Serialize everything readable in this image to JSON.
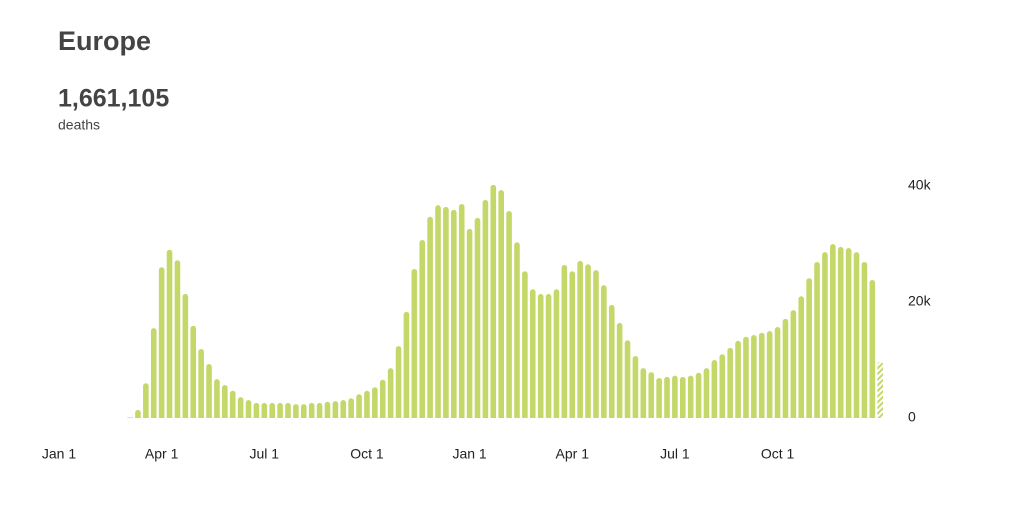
{
  "chart_data": {
    "type": "bar",
    "title": "Europe",
    "headline": "1,661,105",
    "headline_label": "deaths",
    "color": "#c4d86a",
    "x": [
      9,
      10,
      11,
      12,
      13,
      14,
      15,
      16,
      17,
      18,
      19,
      20,
      21,
      22,
      23,
      24,
      25,
      26,
      27,
      28,
      29,
      30,
      31,
      32,
      33,
      34,
      35,
      36,
      37,
      38,
      39,
      40,
      41,
      42,
      43,
      44,
      45,
      46,
      47,
      48,
      49,
      50,
      51,
      52,
      53,
      54,
      55,
      56,
      57,
      58,
      59,
      60,
      61,
      62,
      63,
      64,
      65,
      66,
      67,
      68,
      69,
      70,
      71,
      72,
      73,
      74,
      75,
      76,
      77,
      78,
      79,
      80,
      81,
      82,
      83,
      84,
      85,
      86,
      87,
      88,
      89,
      90,
      91,
      92,
      93,
      94,
      95,
      96,
      97,
      98,
      99,
      100,
      101,
      102,
      103,
      104
    ],
    "values": [
      100,
      1400,
      6000,
      15500,
      26000,
      29000,
      27200,
      21400,
      15900,
      11900,
      9300,
      6700,
      5700,
      4700,
      3600,
      3100,
      2600,
      2600,
      2600,
      2600,
      2600,
      2400,
      2400,
      2600,
      2600,
      2800,
      2900,
      3100,
      3400,
      4100,
      4700,
      5300,
      6600,
      8600,
      12400,
      18300,
      25700,
      30700,
      34700,
      36700,
      36400,
      35900,
      36900,
      32600,
      34500,
      37600,
      40200,
      39300,
      35700,
      30300,
      25300,
      22200,
      21400,
      21400,
      22200,
      26400,
      25300,
      27100,
      26500,
      25500,
      22900,
      19500,
      16400,
      13400,
      10700,
      8600,
      7900,
      6900,
      7100,
      7300,
      7100,
      7300,
      7800,
      8600,
      10000,
      11000,
      12100,
      13300,
      14000,
      14300,
      14700,
      15000,
      15700,
      17100,
      18600,
      21000,
      24100,
      26900,
      28600,
      30000,
      29500,
      29300,
      28600,
      26900,
      23800,
      9700
    ],
    "xlim": [
      0,
      106
    ],
    "xticks": [
      {
        "value": 0,
        "label": "Jan 1"
      },
      {
        "value": 13,
        "label": "Apr 1"
      },
      {
        "value": 26,
        "label": "Jul 1"
      },
      {
        "value": 39,
        "label": "Oct 1"
      },
      {
        "value": 52,
        "label": "Jan 1"
      },
      {
        "value": 65,
        "label": "Apr 1"
      },
      {
        "value": 78,
        "label": "Jul 1"
      },
      {
        "value": 91,
        "label": "Oct 1"
      }
    ],
    "ylim": [
      0,
      40000
    ],
    "yticks": [
      0,
      {
        "value": 20000,
        "label": "20k"
      },
      {
        "value": 40000,
        "label": "40k"
      }
    ]
  }
}
